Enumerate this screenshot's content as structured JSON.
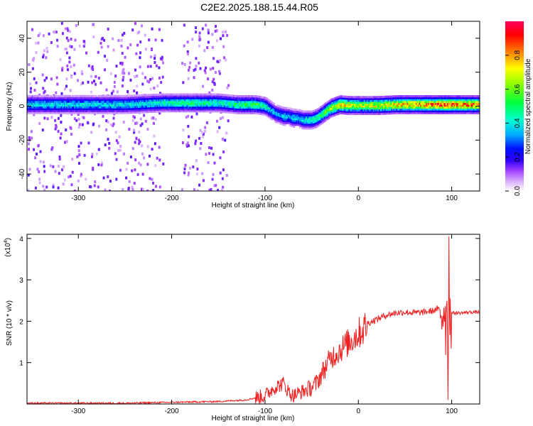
{
  "title": "C2E2.2025.188.15.44.R05",
  "chart_data": [
    {
      "type": "heatmap",
      "xlabel": "Height of straight line (km)",
      "ylabel": "Frequency (Hz)",
      "xlim": [
        -355,
        130
      ],
      "ylim": [
        -50,
        50
      ],
      "x_ticks": [
        -300,
        -200,
        -100,
        0,
        100
      ],
      "x_tick_labels": [
        "-300",
        "-200",
        "-100",
        "0",
        "100"
      ],
      "y_ticks": [
        -40,
        -20,
        0,
        20,
        40
      ],
      "y_tick_labels": [
        "-40",
        "-20",
        "0",
        "20",
        "40"
      ],
      "colorbar": {
        "label": "Normalized spectral amplitude",
        "range": [
          0.0,
          1.0
        ],
        "ticks": [
          0.0,
          0.2,
          0.4,
          0.6,
          0.8
        ],
        "tick_labels": [
          "0.0",
          "0.2",
          "0.4",
          "0.6",
          "0.8"
        ],
        "colormap": [
          "#ffffff",
          "#a040ff",
          "#3000ff",
          "#0000ff",
          "#00aaff",
          "#00ffd0",
          "#00ff40",
          "#80ff00",
          "#ffff00",
          "#ff8000",
          "#ff0000",
          "#ff0060"
        ]
      },
      "ridge": {
        "x": [
          -355,
          -300,
          -250,
          -210,
          -180,
          -150,
          -130,
          -110,
          -100,
          -95,
          -90,
          -85,
          -80,
          -75,
          -70,
          -65,
          -60,
          -55,
          -50,
          -45,
          -40,
          -35,
          -30,
          -25,
          -20,
          -10,
          0,
          20,
          40,
          60,
          80,
          90,
          95,
          100,
          110,
          130
        ],
        "frequency": [
          1,
          1,
          1,
          2,
          2,
          2,
          1,
          1,
          0,
          -2,
          -4,
          -5,
          -6,
          -6,
          -7,
          -7,
          -8,
          -8,
          -8,
          -7,
          -5,
          -3,
          -1,
          0,
          1,
          0.5,
          0.5,
          0.5,
          1,
          1,
          1,
          1,
          1,
          1,
          1,
          1
        ],
        "amplitude": [
          0.45,
          0.45,
          0.45,
          0.5,
          0.55,
          0.5,
          0.55,
          0.6,
          0.5,
          0.45,
          0.4,
          0.4,
          0.45,
          0.4,
          0.45,
          0.4,
          0.45,
          0.5,
          0.5,
          0.55,
          0.6,
          0.65,
          0.7,
          0.75,
          0.8,
          0.75,
          0.7,
          0.75,
          0.8,
          0.85,
          0.9,
          0.95,
          0.95,
          0.9,
          0.9,
          0.85
        ]
      },
      "noise_bands": [
        [
          -355,
          -210
        ],
        [
          -190,
          -140
        ]
      ],
      "noise_gap": [
        -200,
        -190
      ]
    },
    {
      "type": "line",
      "xlabel": "Height of straight line (km)",
      "ylabel": "SNR (10 * v/v)",
      "y_multiplier": "(x10",
      "y_multiplier_exp": "4",
      "xlim": [
        -355,
        130
      ],
      "ylim": [
        0,
        4.1
      ],
      "x_ticks": [
        -300,
        -200,
        -100,
        0,
        100
      ],
      "x_tick_labels": [
        "-300",
        "-200",
        "-100",
        "0",
        "100"
      ],
      "y_ticks": [
        1,
        2,
        3,
        4
      ],
      "y_tick_labels": [
        "1",
        "2",
        "3",
        "4"
      ],
      "color": "#ee2222",
      "series": [
        {
          "x": [
            -355,
            -300,
            -250,
            -200,
            -150,
            -120,
            -110,
            -100,
            -95,
            -90,
            -85,
            -80,
            -75,
            -70,
            -65,
            -60,
            -55,
            -50,
            -45,
            -40,
            -35,
            -30,
            -25,
            -20,
            -15,
            -10,
            -5,
            0,
            5,
            10,
            20,
            30,
            40,
            50,
            60,
            70,
            80,
            85,
            90,
            92,
            94,
            95,
            96,
            97,
            98,
            100,
            110,
            120,
            130
          ],
          "y": [
            0.02,
            0.02,
            0.02,
            0.04,
            0.06,
            0.1,
            0.15,
            0.2,
            0.3,
            0.4,
            0.45,
            0.5,
            0.3,
            0.2,
            0.25,
            0.3,
            0.35,
            0.4,
            0.5,
            0.7,
            0.9,
            1.1,
            1.2,
            1.3,
            1.4,
            1.5,
            1.6,
            1.7,
            1.8,
            1.95,
            2.05,
            2.15,
            2.2,
            2.22,
            2.2,
            2.22,
            2.25,
            2.3,
            2.2,
            2.5,
            1.8,
            3.3,
            0.1,
            4.0,
            2.2,
            2.2,
            2.2,
            2.22,
            2.22
          ]
        }
      ]
    }
  ]
}
